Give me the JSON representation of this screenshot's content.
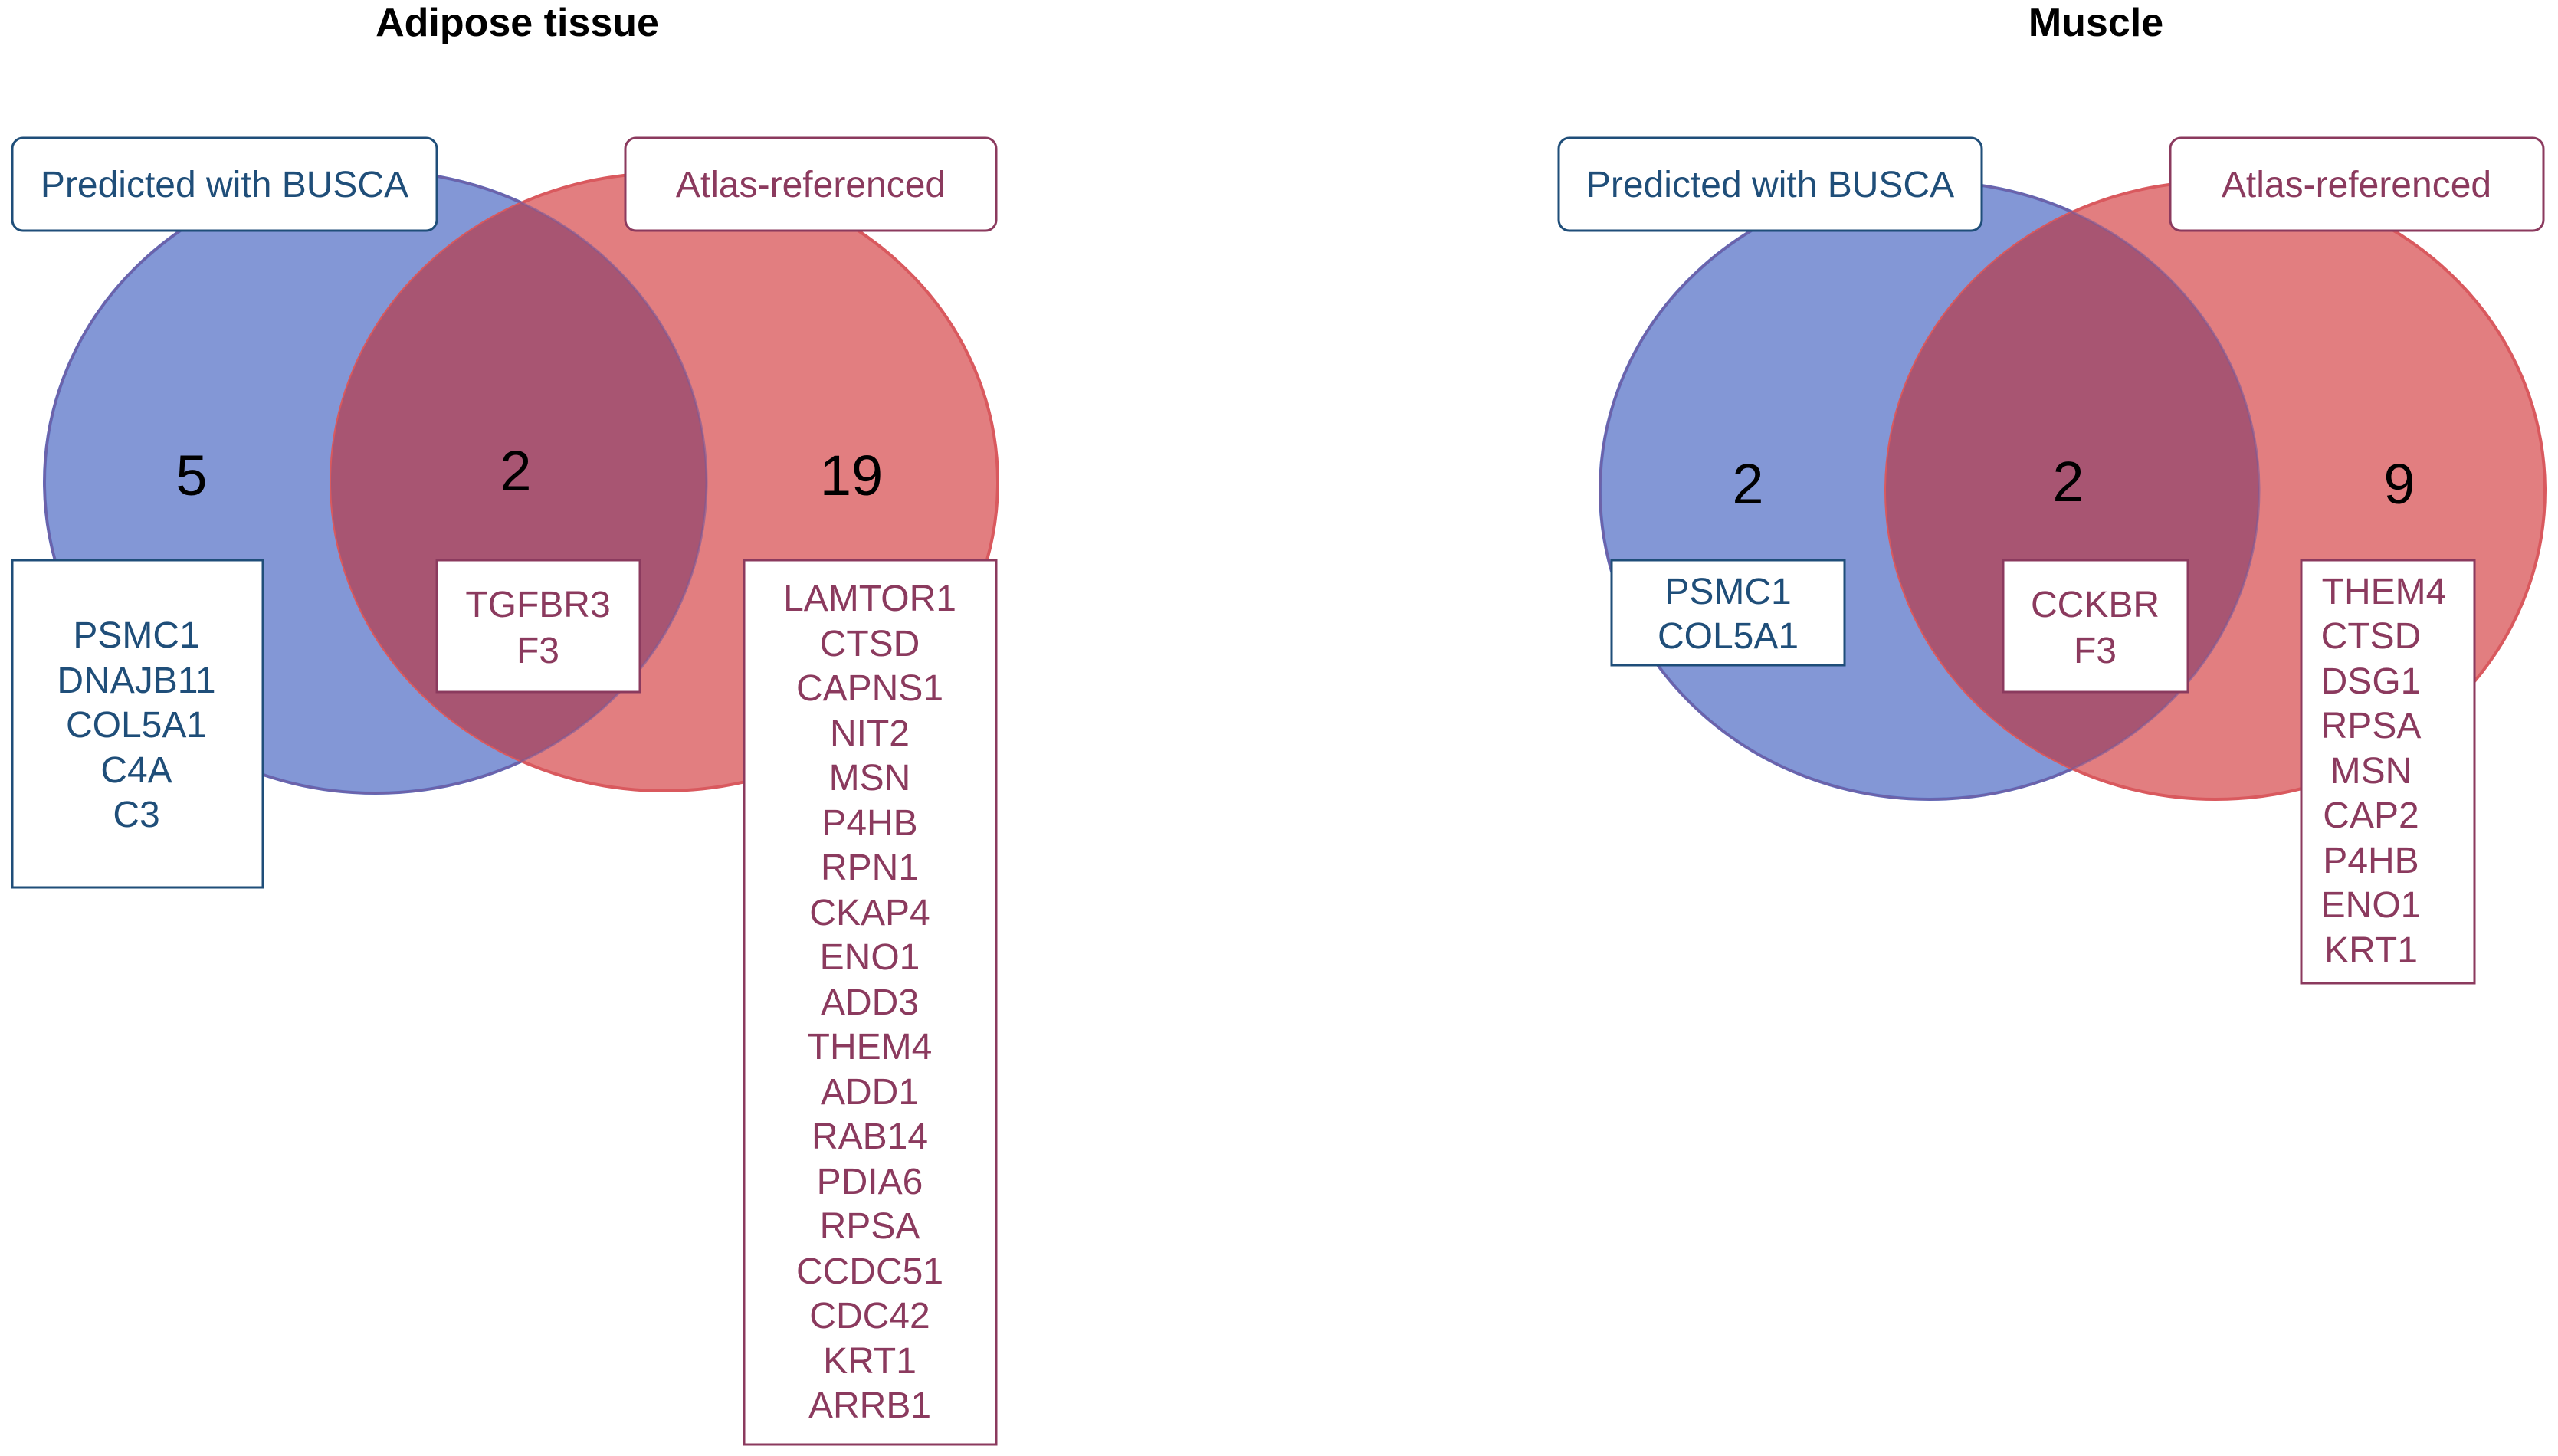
{
  "colors": {
    "busca_fill": "#8397D6",
    "busca_stroke": "#5B6FC0",
    "busca_text": "#1F4E79",
    "atlas_fill": "#E27E80",
    "atlas_stroke": "#D9595E",
    "atlas_text": "#8B3A5E",
    "overlap_fill": "#A85572",
    "box_fill": "#FFFFFF"
  },
  "diagrams": [
    {
      "title": "Adipose tissue",
      "busca_label": "Predicted with BUSCA",
      "atlas_label": "Atlas-referenced",
      "counts": {
        "busca_only": "5",
        "overlap": "2",
        "atlas_only": "19"
      },
      "busca_only_genes": [
        "PSMC1",
        "DNAJB11",
        "COL5A1",
        "C4A",
        "C3"
      ],
      "overlap_genes": [
        "TGFBR3",
        "F3"
      ],
      "atlas_only_genes": [
        "LAMTOR1",
        "CTSD",
        "CAPNS1",
        "NIT2",
        "MSN",
        "P4HB",
        "RPN1",
        "CKAP4",
        "ENO1",
        "ADD3",
        "THEM4",
        "ADD1",
        "RAB14",
        "PDIA6",
        "RPSA",
        "CCDC51",
        "CDC42",
        "KRT1",
        "ARRB1"
      ]
    },
    {
      "title": "Muscle",
      "busca_label": "Predicted with BUSCA",
      "atlas_label": "Atlas-referenced",
      "counts": {
        "busca_only": "2",
        "overlap": "2",
        "atlas_only": "9"
      },
      "busca_only_genes": [
        "PSMC1",
        "COL5A1"
      ],
      "overlap_genes": [
        "CCKBR",
        "F3"
      ],
      "atlas_only_genes": [
        "THEM4",
        "CTSD",
        "DSG1",
        "RPSA",
        "MSN",
        "CAP2",
        "P4HB",
        "ENO1",
        "KRT1"
      ]
    }
  ]
}
